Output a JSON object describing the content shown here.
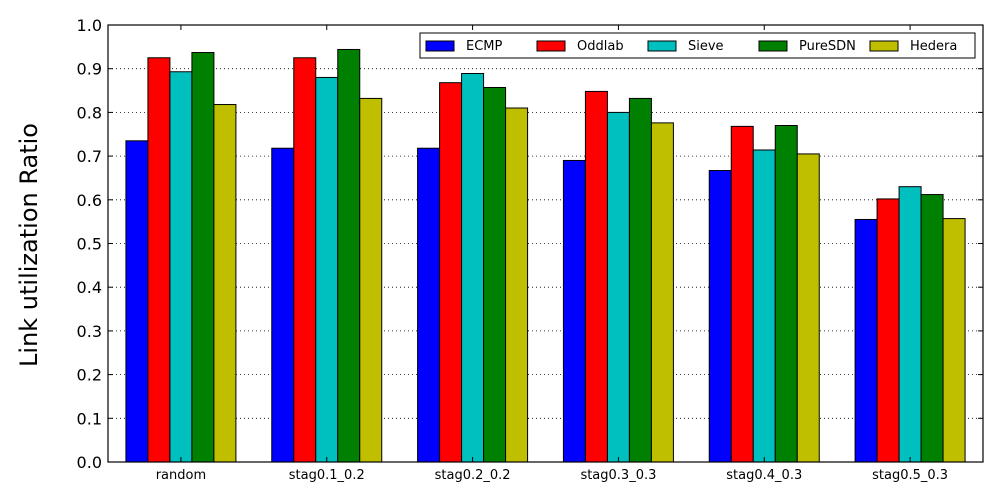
{
  "chart_data": {
    "type": "bar",
    "title": "",
    "xlabel": "",
    "ylabel": "Link utilization Ratio",
    "ylim": [
      0.0,
      1.0
    ],
    "yticks": [
      "0.0",
      "0.1",
      "0.2",
      "0.3",
      "0.4",
      "0.5",
      "0.6",
      "0.7",
      "0.8",
      "0.9",
      "1.0"
    ],
    "grid": "horizontal dotted",
    "legend_position": "top-right",
    "categories": [
      "random",
      "stag0.1_0.2",
      "stag0.2_0.2",
      "stag0.3_0.3",
      "stag0.4_0.3",
      "stag0.5_0.3"
    ],
    "series": [
      {
        "name": "ECMP",
        "color": "#0000ff",
        "values": [
          0.735,
          0.718,
          0.718,
          0.69,
          0.667,
          0.555
        ]
      },
      {
        "name": "Oddlab",
        "color": "#ff0000",
        "values": [
          0.925,
          0.925,
          0.868,
          0.848,
          0.768,
          0.602
        ]
      },
      {
        "name": "Sieve",
        "color": "#00bfbf",
        "values": [
          0.893,
          0.88,
          0.889,
          0.8,
          0.714,
          0.63
        ]
      },
      {
        "name": "PureSDN",
        "color": "#008000",
        "values": [
          0.937,
          0.944,
          0.857,
          0.832,
          0.77,
          0.612
        ]
      },
      {
        "name": "Hedera",
        "color": "#bfbf00",
        "values": [
          0.818,
          0.832,
          0.81,
          0.776,
          0.705,
          0.557
        ]
      }
    ]
  }
}
